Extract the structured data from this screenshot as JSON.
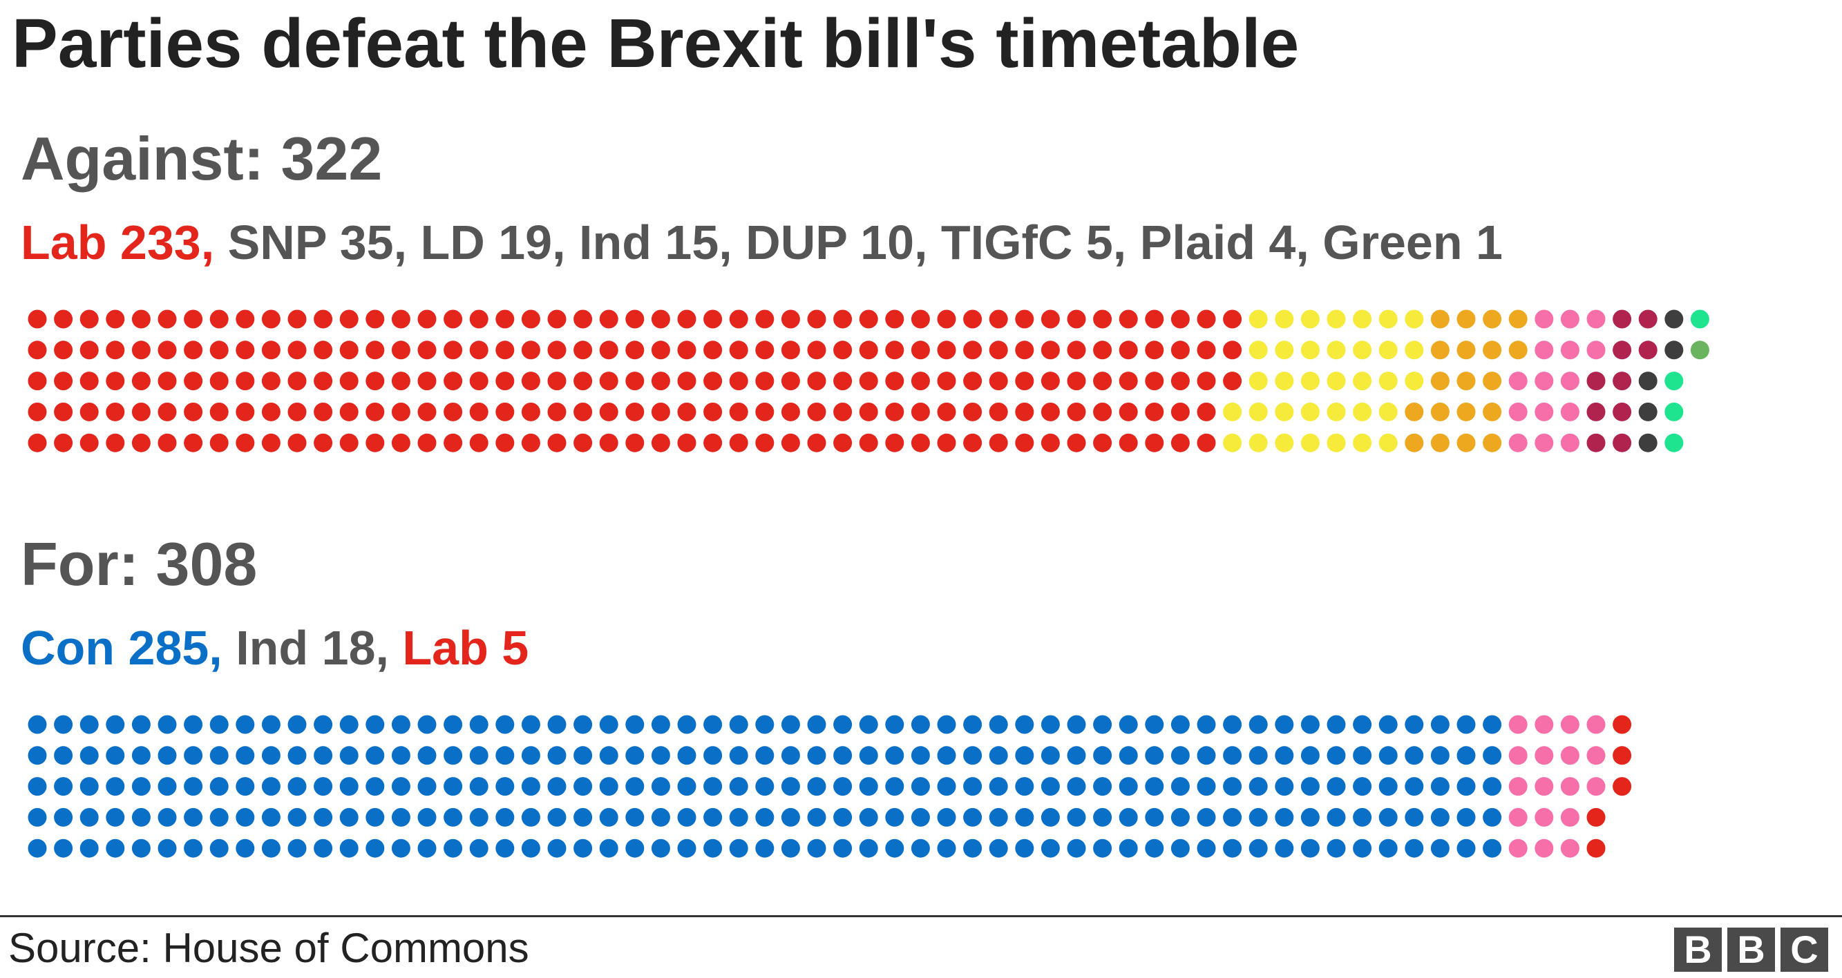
{
  "title": "Parties defeat the Brexit bill's timetable",
  "source": "Source: House of Commons",
  "logo": [
    "B",
    "B",
    "C"
  ],
  "chart_data": {
    "type": "dot-matrix",
    "title": "Parties defeat the Brexit bill's timetable",
    "rows_per_column": 5,
    "groups": [
      {
        "name": "Against",
        "label": "Against",
        "separator": ": ",
        "total": 322,
        "parties": [
          {
            "name": "Lab",
            "count": 233,
            "color": "#e4251b"
          },
          {
            "name": "SNP",
            "count": 35,
            "color": "#f6ea3b"
          },
          {
            "name": "LD",
            "count": 19,
            "color": "#eda81f"
          },
          {
            "name": "Ind",
            "count": 15,
            "color": "#f66fa9"
          },
          {
            "name": "DUP",
            "count": 10,
            "color": "#b0234e"
          },
          {
            "name": "TIGfC",
            "count": 5,
            "color": "#3e3e3e"
          },
          {
            "name": "Plaid",
            "count": 4,
            "color": "#1ee38f"
          },
          {
            "name": "Green",
            "count": 1,
            "color": "#6ab35f"
          }
        ]
      },
      {
        "name": "For",
        "label": "For",
        "separator": ": ",
        "total": 308,
        "parties": [
          {
            "name": "Con",
            "count": 285,
            "color": "#0a6fc7"
          },
          {
            "name": "Ind",
            "count": 18,
            "color": "#f66fa9"
          },
          {
            "name": "Lab",
            "count": 5,
            "color": "#e4251b"
          }
        ]
      }
    ]
  },
  "breakdown_text_colors": {
    "default": "#555555",
    "Lab": "#e4251b",
    "Con": "#0a6fc7"
  }
}
